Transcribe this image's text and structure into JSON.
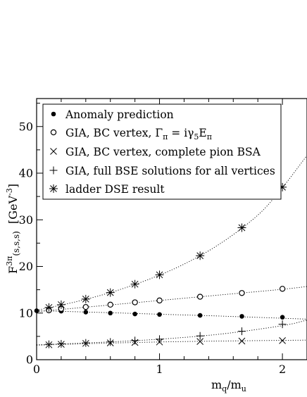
{
  "chart_data": {
    "type": "scatter",
    "title": "",
    "xlabel": "m_q/m_u",
    "ylabel": "F^3π(s,s,s) [GeV^-3]",
    "xlim": [
      0,
      2.2
    ],
    "ylim": [
      0,
      56
    ],
    "xticks": [
      0,
      1,
      2
    ],
    "yticks": [
      0,
      10,
      20,
      30,
      40,
      50
    ],
    "grid": false,
    "legend_position": "top-left",
    "series": [
      {
        "name": "Anomaly prediction",
        "marker": "filled-circle",
        "x": [
          0,
          0.1,
          0.2,
          0.4,
          0.6,
          0.8,
          1.0,
          1.33,
          1.67,
          2.0
        ],
        "y": [
          10.5,
          10.5,
          10.4,
          10.2,
          10.0,
          9.8,
          9.7,
          9.5,
          9.3,
          9.1
        ],
        "fit": {
          "x": [
            0,
            0.5,
            1.0,
            1.5,
            2.2
          ],
          "y": [
            10.5,
            10.15,
            9.75,
            9.35,
            8.7
          ]
        }
      },
      {
        "name": "GIA, BC vertex, Γ_π = iγ_5E_π",
        "marker": "open-circle",
        "x": [
          0.1,
          0.2,
          0.4,
          0.6,
          0.8,
          1.0,
          1.33,
          1.67,
          2.0
        ],
        "y": [
          10.6,
          10.9,
          11.3,
          11.8,
          12.3,
          12.7,
          13.5,
          14.3,
          15.2
        ],
        "fit": {
          "x": [
            0,
            0.5,
            1.0,
            1.5,
            2.0,
            2.2
          ],
          "y": [
            10.3,
            11.5,
            12.7,
            13.9,
            15.1,
            15.7
          ]
        }
      },
      {
        "name": "GIA, BC vertex, complete pion BSA",
        "marker": "x-cross",
        "x": [
          0.1,
          0.2,
          0.4,
          0.6,
          0.8,
          1.0,
          1.33,
          1.67,
          2.0
        ],
        "y": [
          3.2,
          3.3,
          3.5,
          3.6,
          3.7,
          3.8,
          3.9,
          4.0,
          4.1
        ],
        "fit": {
          "x": [
            0,
            0.5,
            1.0,
            1.5,
            2.2
          ],
          "y": [
            3.1,
            3.5,
            3.8,
            4.0,
            4.2
          ]
        }
      },
      {
        "name": "GIA, full BSE solutions for all vertices",
        "marker": "plus",
        "x": [
          0.1,
          0.2,
          0.4,
          0.6,
          0.8,
          1.0,
          1.33,
          1.67,
          2.0
        ],
        "y": [
          3.3,
          3.4,
          3.6,
          3.8,
          4.1,
          4.4,
          5.1,
          6.1,
          7.6
        ],
        "fit": {
          "x": [
            0,
            0.5,
            1.0,
            1.5,
            2.0,
            2.2
          ],
          "y": [
            3.2,
            3.7,
            4.4,
            5.5,
            7.3,
            8.5
          ]
        }
      },
      {
        "name": "ladder DSE result",
        "marker": "asterisk",
        "x": [
          0.1,
          0.2,
          0.4,
          0.6,
          0.8,
          1.0,
          1.33,
          1.67,
          2.0
        ],
        "y": [
          11.2,
          11.8,
          13.0,
          14.4,
          16.2,
          18.2,
          22.3,
          28.3,
          37.0
        ],
        "fit": {
          "x": [
            0,
            0.3,
            0.6,
            0.9,
            1.2,
            1.5,
            1.8,
            2.0,
            2.2
          ],
          "y": [
            10.6,
            12.3,
            14.4,
            17.1,
            20.5,
            25.0,
            31.0,
            36.9,
            43.8
          ]
        }
      }
    ]
  }
}
